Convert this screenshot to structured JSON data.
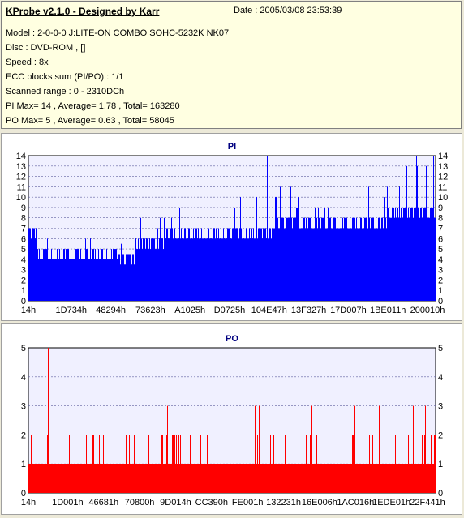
{
  "info": {
    "title": "KProbe v2.1.0 - Designed by Karr",
    "date": "Date : 2005/03/08 23:53:39",
    "model": "Model : 2-0-0-0 J:LITE-ON COMBO SOHC-5232K NK07",
    "disc": "Disc : DVD-ROM ,  []",
    "speed": "Speed : 8x",
    "ecc": "ECC blocks sum (PI/PO) : 1/1",
    "range": "Scanned range : 0 - 2310DCh",
    "pi": "PI Max= 14 , Average= 1.78 , Total= 163280",
    "po": "PO Max= 5 , Average= 0.63 , Total= 58045"
  },
  "colors": {
    "pi_bar": "#0000ff",
    "po_bar": "#ff0000",
    "plot_bg": "#f0f0ff",
    "title": "#000080"
  },
  "chart_data": [
    {
      "type": "bar",
      "title": "PI",
      "ylim": [
        0,
        14
      ],
      "yticks": [
        0,
        1,
        2,
        3,
        4,
        5,
        6,
        7,
        8,
        9,
        10,
        11,
        12,
        13,
        14
      ],
      "xticks": [
        "14h",
        "1D734h",
        "48294h",
        "73623h",
        "A1025h",
        "D0725h",
        "104E47h",
        "13F327h",
        "17D007h",
        "1BE011h",
        "200010h"
      ],
      "grid": true,
      "segments": [
        {
          "x": [
            0,
            0.02
          ],
          "base": 6,
          "spike": 9
        },
        {
          "x": [
            0.02,
            0.06
          ],
          "base": 4,
          "spike": 8
        },
        {
          "x": [
            0.06,
            0.22
          ],
          "base": 4,
          "spike": 7
        },
        {
          "x": [
            0.22,
            0.26
          ],
          "base": 3.5,
          "spike": 6
        },
        {
          "x": [
            0.26,
            0.34
          ],
          "base": 5,
          "spike": 8
        },
        {
          "x": [
            0.34,
            0.45
          ],
          "base": 6,
          "spike": 9
        },
        {
          "x": [
            0.45,
            0.6
          ],
          "base": 6,
          "spike": 10
        },
        {
          "x": [
            0.6,
            0.72
          ],
          "base": 7,
          "spike": 11
        },
        {
          "x": [
            0.72,
            0.88
          ],
          "base": 7,
          "spike": 11
        },
        {
          "x": [
            0.88,
            1.0
          ],
          "base": 8,
          "spike": 13
        }
      ],
      "peaks": [
        {
          "x": 0.586,
          "y": 14
        },
        {
          "x": 0.952,
          "y": 14
        },
        {
          "x": 0.995,
          "y": 14
        }
      ]
    },
    {
      "type": "bar",
      "title": "PO",
      "ylim": [
        0,
        5
      ],
      "yticks": [
        0,
        1,
        2,
        3,
        4,
        5
      ],
      "xticks": [
        "14h",
        "1D001h",
        "46681h",
        "70800h",
        "9D014h",
        "CC390h",
        "FE001h",
        "132231h",
        "16E006h",
        "1AC016h",
        "1EDE01h",
        "22F441h"
      ],
      "grid": true,
      "base": 1,
      "peaks": [
        {
          "x": 0.048,
          "y": 5
        },
        {
          "x": 0.005,
          "y": 2
        },
        {
          "x": 0.03,
          "y": 2
        },
        {
          "x": 0.045,
          "y": 2
        },
        {
          "x": 0.315,
          "y": 3
        },
        {
          "x": 0.34,
          "y": 3
        },
        {
          "x": 0.355,
          "y": 2
        },
        {
          "x": 0.545,
          "y": 3
        },
        {
          "x": 0.555,
          "y": 3
        },
        {
          "x": 0.565,
          "y": 3
        },
        {
          "x": 0.59,
          "y": 2
        },
        {
          "x": 0.695,
          "y": 3
        },
        {
          "x": 0.705,
          "y": 3
        },
        {
          "x": 0.725,
          "y": 3
        },
        {
          "x": 0.8,
          "y": 3
        },
        {
          "x": 0.86,
          "y": 3
        },
        {
          "x": 0.945,
          "y": 3
        },
        {
          "x": 0.975,
          "y": 3
        },
        {
          "x": 0.998,
          "y": 2
        }
      ]
    }
  ]
}
